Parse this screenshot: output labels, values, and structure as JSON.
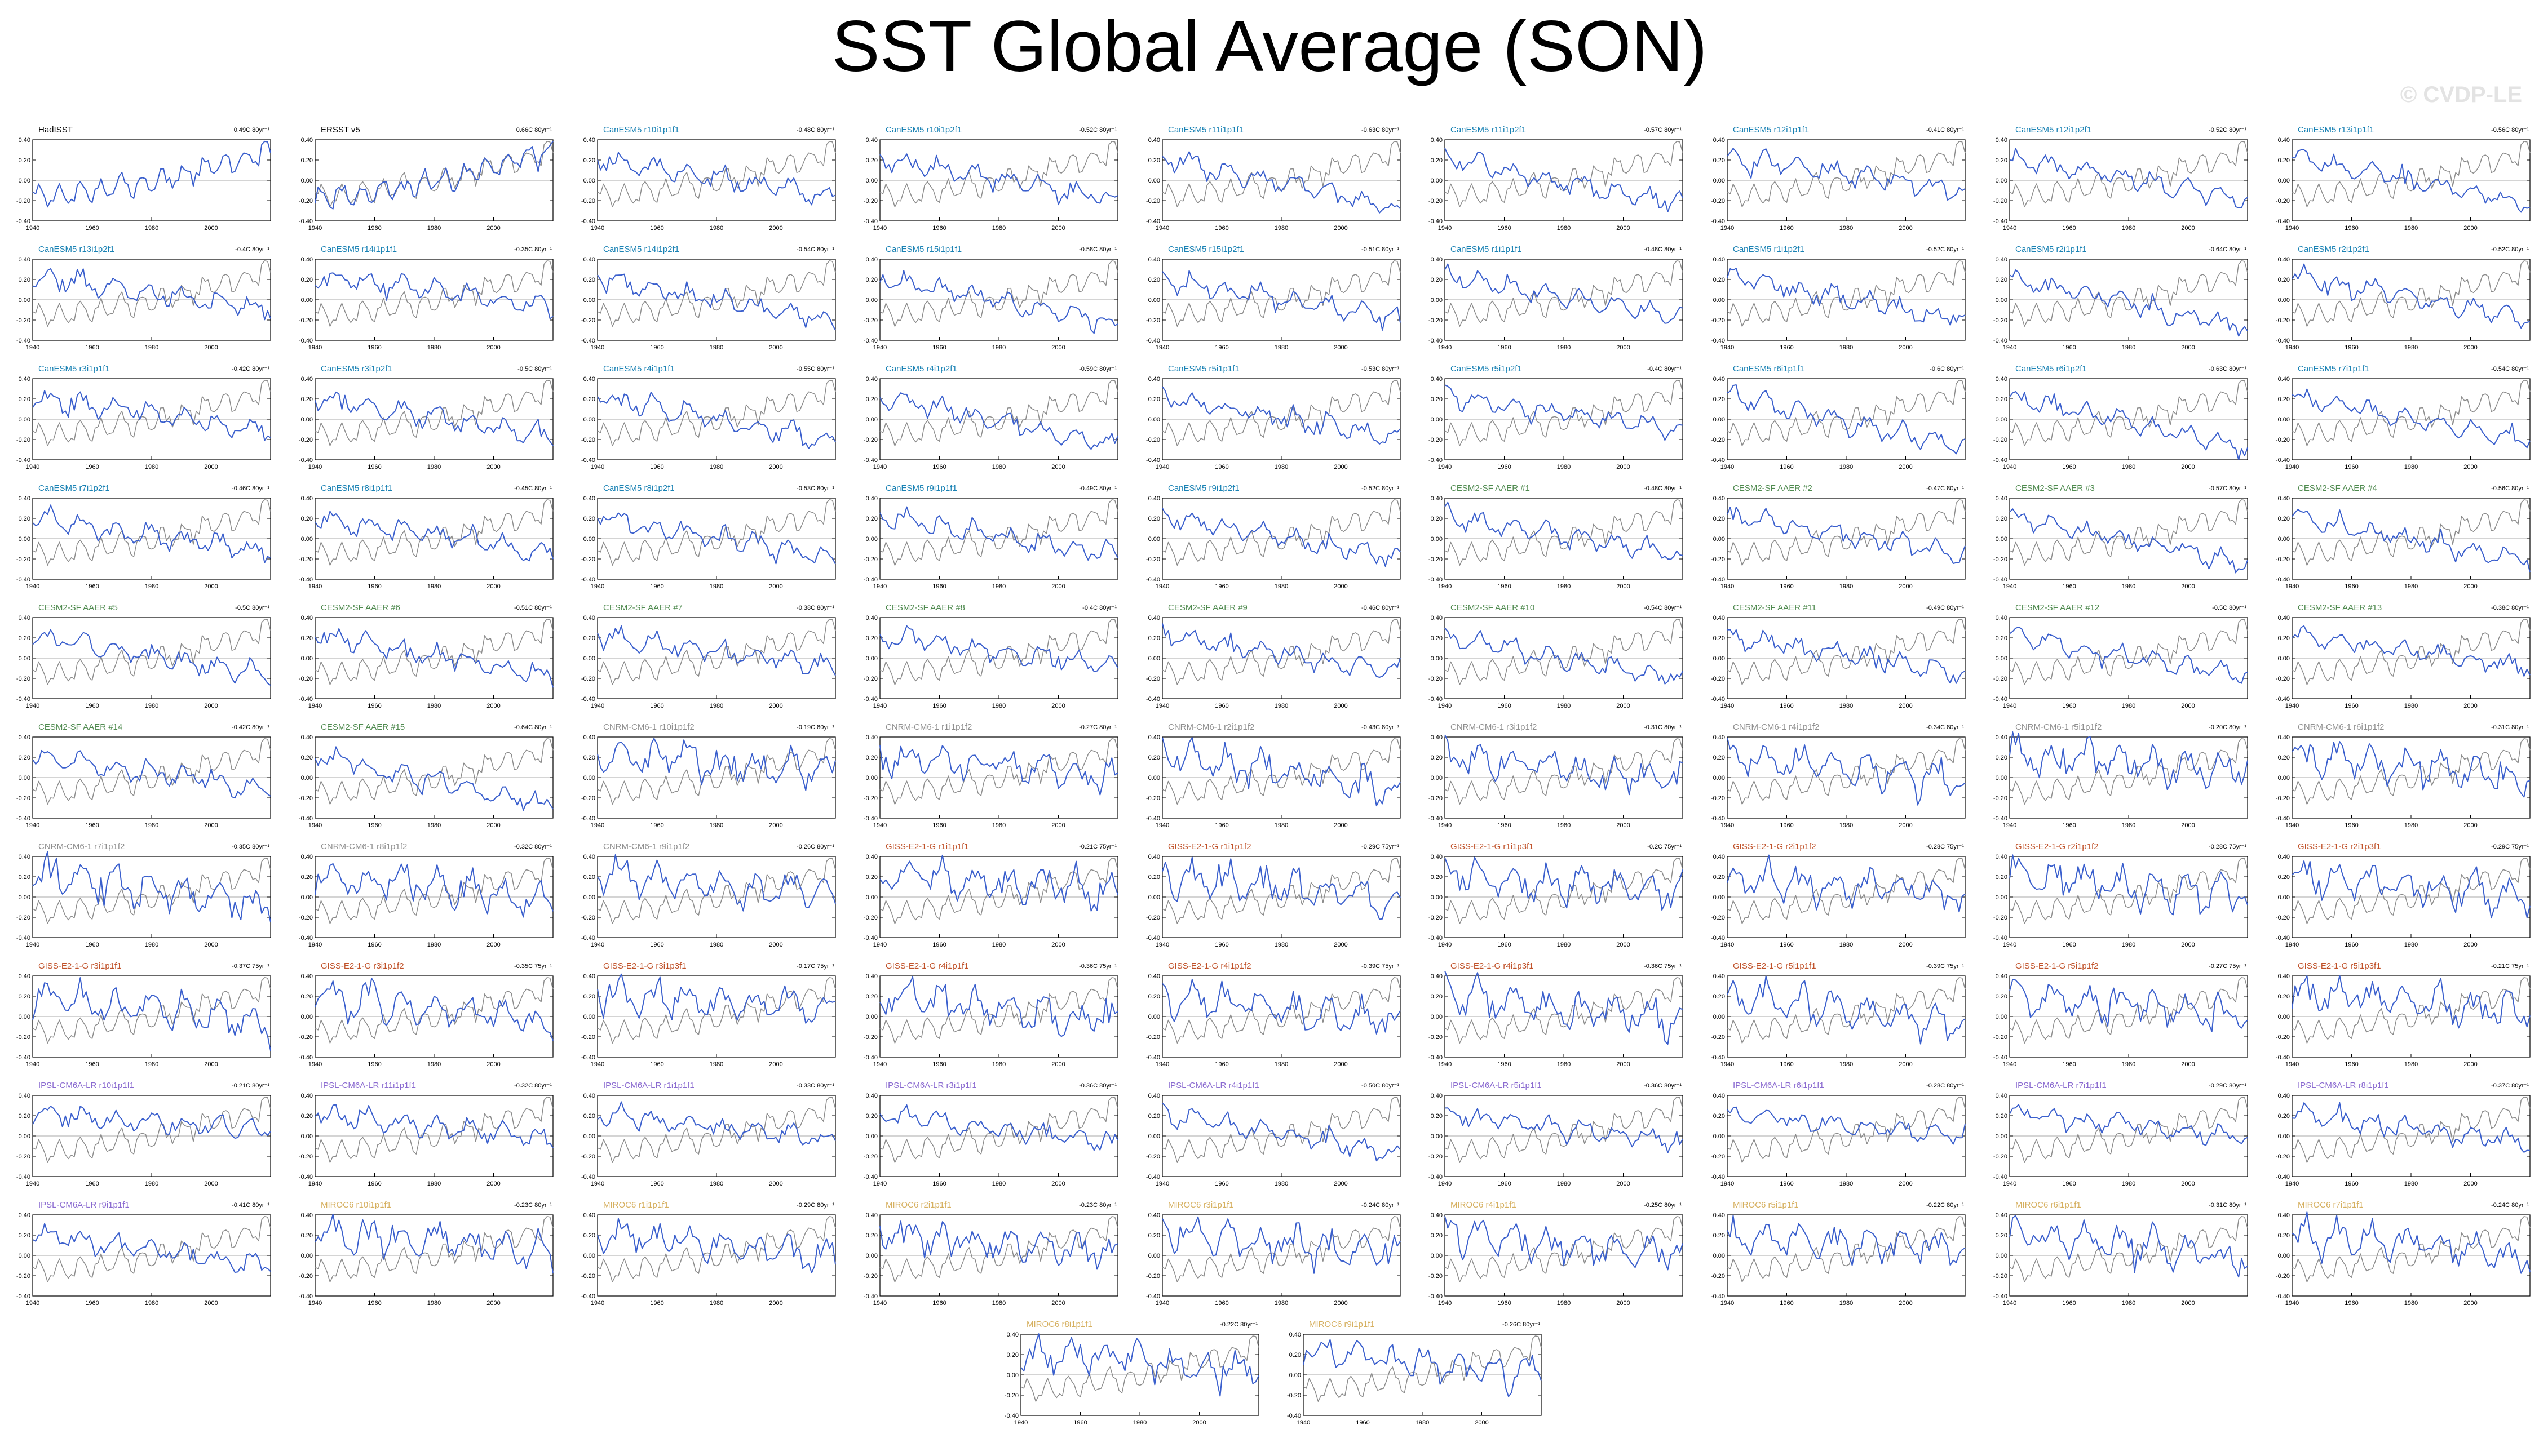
{
  "title": "SST Global Average (SON)",
  "watermark": "© CVDP-LE",
  "colors": {
    "model_line": "#3a5fcd",
    "observed_line": "#8c8c8c",
    "zero_line": "#bbbbbb",
    "axis": "#000000",
    "title_obs": "#000000",
    "title_canesm5": "#1a82b4",
    "title_cesm2": "#4f8a4f",
    "title_cnrm": "#8f8f8f",
    "title_giss": "#c0522a",
    "title_ipsl": "#8a6ad0",
    "title_miroc": "#d6b060"
  },
  "chart_data": {
    "type": "line",
    "layout": "small-multiples",
    "x_range": [
      1940,
      2020
    ],
    "y_range": [
      -0.4,
      0.4
    ],
    "x_ticks": [
      1940,
      1960,
      1980,
      2000
    ],
    "y_ticks": [
      0.4,
      0.2,
      0.0,
      -0.2,
      -0.4
    ],
    "x_tick_labels": [
      "1940",
      "1960",
      "1980",
      "2000"
    ],
    "y_tick_labels": [
      "0.40",
      "0.20",
      "0.00",
      "-0.20",
      "-0.40"
    ],
    "panels": [
      {
        "title": "HadISST",
        "trend": "0.49C 80yr⁻¹",
        "color": "title_obs"
      },
      {
        "title": "ERSST v5",
        "trend": "0.66C 80yr⁻¹",
        "color": "title_obs"
      },
      {
        "title": "CanESM5 r10i1p1f1",
        "trend": "-0.48C 80yr⁻¹",
        "color": "title_canesm5"
      },
      {
        "title": "CanESM5 r10i1p2f1",
        "trend": "-0.52C 80yr⁻¹",
        "color": "title_canesm5"
      },
      {
        "title": "CanESM5 r11i1p1f1",
        "trend": "-0.63C 80yr⁻¹",
        "color": "title_canesm5"
      },
      {
        "title": "CanESM5 r11i1p2f1",
        "trend": "-0.57C 80yr⁻¹",
        "color": "title_canesm5"
      },
      {
        "title": "CanESM5 r12i1p1f1",
        "trend": "-0.41C 80yr⁻¹",
        "color": "title_canesm5"
      },
      {
        "title": "CanESM5 r12i1p2f1",
        "trend": "-0.52C 80yr⁻¹",
        "color": "title_canesm5"
      },
      {
        "title": "CanESM5 r13i1p1f1",
        "trend": "-0.56C 80yr⁻¹",
        "color": "title_canesm5"
      },
      {
        "title": "CanESM5 r13i1p2f1",
        "trend": "-0.4C 80yr⁻¹",
        "color": "title_canesm5"
      },
      {
        "title": "CanESM5 r14i1p1f1",
        "trend": "-0.35C 80yr⁻¹",
        "color": "title_canesm5"
      },
      {
        "title": "CanESM5 r14i1p2f1",
        "trend": "-0.54C 80yr⁻¹",
        "color": "title_canesm5"
      },
      {
        "title": "CanESM5 r15i1p1f1",
        "trend": "-0.58C 80yr⁻¹",
        "color": "title_canesm5"
      },
      {
        "title": "CanESM5 r15i1p2f1",
        "trend": "-0.51C 80yr⁻¹",
        "color": "title_canesm5"
      },
      {
        "title": "CanESM5 r1i1p1f1",
        "trend": "-0.48C 80yr⁻¹",
        "color": "title_canesm5"
      },
      {
        "title": "CanESM5 r1i1p2f1",
        "trend": "-0.52C 80yr⁻¹",
        "color": "title_canesm5"
      },
      {
        "title": "CanESM5 r2i1p1f1",
        "trend": "-0.64C 80yr⁻¹",
        "color": "title_canesm5"
      },
      {
        "title": "CanESM5 r2i1p2f1",
        "trend": "-0.52C 80yr⁻¹",
        "color": "title_canesm5"
      },
      {
        "title": "CanESM5 r3i1p1f1",
        "trend": "-0.42C 80yr⁻¹",
        "color": "title_canesm5"
      },
      {
        "title": "CanESM5 r3i1p2f1",
        "trend": "-0.5C 80yr⁻¹",
        "color": "title_canesm5"
      },
      {
        "title": "CanESM5 r4i1p1f1",
        "trend": "-0.55C 80yr⁻¹",
        "color": "title_canesm5"
      },
      {
        "title": "CanESM5 r4i1p2f1",
        "trend": "-0.59C 80yr⁻¹",
        "color": "title_canesm5"
      },
      {
        "title": "CanESM5 r5i1p1f1",
        "trend": "-0.53C 80yr⁻¹",
        "color": "title_canesm5"
      },
      {
        "title": "CanESM5 r5i1p2f1",
        "trend": "-0.4C 80yr⁻¹",
        "color": "title_canesm5"
      },
      {
        "title": "CanESM5 r6i1p1f1",
        "trend": "-0.6C 80yr⁻¹",
        "color": "title_canesm5"
      },
      {
        "title": "CanESM5 r6i1p2f1",
        "trend": "-0.63C 80yr⁻¹",
        "color": "title_canesm5"
      },
      {
        "title": "CanESM5 r7i1p1f1",
        "trend": "-0.54C 80yr⁻¹",
        "color": "title_canesm5"
      },
      {
        "title": "CanESM5 r7i1p2f1",
        "trend": "-0.46C 80yr⁻¹",
        "color": "title_canesm5"
      },
      {
        "title": "CanESM5 r8i1p1f1",
        "trend": "-0.45C 80yr⁻¹",
        "color": "title_canesm5"
      },
      {
        "title": "CanESM5 r8i1p2f1",
        "trend": "-0.53C 80yr⁻¹",
        "color": "title_canesm5"
      },
      {
        "title": "CanESM5 r9i1p1f1",
        "trend": "-0.49C 80yr⁻¹",
        "color": "title_canesm5"
      },
      {
        "title": "CanESM5 r9i1p2f1",
        "trend": "-0.52C 80yr⁻¹",
        "color": "title_canesm5"
      },
      {
        "title": "CESM2-SF AAER #1",
        "trend": "-0.48C 80yr⁻¹",
        "color": "title_cesm2"
      },
      {
        "title": "CESM2-SF AAER #2",
        "trend": "-0.47C 80yr⁻¹",
        "color": "title_cesm2"
      },
      {
        "title": "CESM2-SF AAER #3",
        "trend": "-0.57C 80yr⁻¹",
        "color": "title_cesm2"
      },
      {
        "title": "CESM2-SF AAER #4",
        "trend": "-0.56C 80yr⁻¹",
        "color": "title_cesm2"
      },
      {
        "title": "CESM2-SF AAER #5",
        "trend": "-0.5C 80yr⁻¹",
        "color": "title_cesm2"
      },
      {
        "title": "CESM2-SF AAER #6",
        "trend": "-0.51C 80yr⁻¹",
        "color": "title_cesm2"
      },
      {
        "title": "CESM2-SF AAER #7",
        "trend": "-0.38C 80yr⁻¹",
        "color": "title_cesm2"
      },
      {
        "title": "CESM2-SF AAER #8",
        "trend": "-0.4C 80yr⁻¹",
        "color": "title_cesm2"
      },
      {
        "title": "CESM2-SF AAER #9",
        "trend": "-0.46C 80yr⁻¹",
        "color": "title_cesm2"
      },
      {
        "title": "CESM2-SF AAER #10",
        "trend": "-0.54C 80yr⁻¹",
        "color": "title_cesm2"
      },
      {
        "title": "CESM2-SF AAER #11",
        "trend": "-0.49C 80yr⁻¹",
        "color": "title_cesm2"
      },
      {
        "title": "CESM2-SF AAER #12",
        "trend": "-0.5C 80yr⁻¹",
        "color": "title_cesm2"
      },
      {
        "title": "CESM2-SF AAER #13",
        "trend": "-0.38C 80yr⁻¹",
        "color": "title_cesm2"
      },
      {
        "title": "CESM2-SF AAER #14",
        "trend": "-0.42C 80yr⁻¹",
        "color": "title_cesm2"
      },
      {
        "title": "CESM2-SF AAER #15",
        "trend": "-0.64C 80yr⁻¹",
        "color": "title_cesm2"
      },
      {
        "title": "CNRM-CM6-1 r10i1p1f2",
        "trend": "-0.19C 80yr⁻¹",
        "color": "title_cnrm"
      },
      {
        "title": "CNRM-CM6-1 r1i1p1f2",
        "trend": "-0.27C 80yr⁻¹",
        "color": "title_cnrm"
      },
      {
        "title": "CNRM-CM6-1 r2i1p1f2",
        "trend": "-0.43C 80yr⁻¹",
        "color": "title_cnrm"
      },
      {
        "title": "CNRM-CM6-1 r3i1p1f2",
        "trend": "-0.31C 80yr⁻¹",
        "color": "title_cnrm"
      },
      {
        "title": "CNRM-CM6-1 r4i1p1f2",
        "trend": "-0.34C 80yr⁻¹",
        "color": "title_cnrm"
      },
      {
        "title": "CNRM-CM6-1 r5i1p1f2",
        "trend": "-0.20C 80yr⁻¹",
        "color": "title_cnrm"
      },
      {
        "title": "CNRM-CM6-1 r6i1p1f2",
        "trend": "-0.31C 80yr⁻¹",
        "color": "title_cnrm"
      },
      {
        "title": "CNRM-CM6-1 r7i1p1f2",
        "trend": "-0.35C 80yr⁻¹",
        "color": "title_cnrm"
      },
      {
        "title": "CNRM-CM6-1 r8i1p1f2",
        "trend": "-0.32C 80yr⁻¹",
        "color": "title_cnrm"
      },
      {
        "title": "CNRM-CM6-1 r9i1p1f2",
        "trend": "-0.26C 80yr⁻¹",
        "color": "title_cnrm"
      },
      {
        "title": "GISS-E2-1-G r1i1p1f1",
        "trend": "-0.21C 75yr⁻¹",
        "color": "title_giss"
      },
      {
        "title": "GISS-E2-1-G r1i1p1f2",
        "trend": "-0.29C 75yr⁻¹",
        "color": "title_giss"
      },
      {
        "title": "GISS-E2-1-G r1i1p3f1",
        "trend": "-0.2C 75yr⁻¹",
        "color": "title_giss"
      },
      {
        "title": "GISS-E2-1-G r2i1p1f2",
        "trend": "-0.28C 75yr⁻¹",
        "color": "title_giss"
      },
      {
        "title": "GISS-E2-1-G r2i1p1f2",
        "trend": "-0.28C 75yr⁻¹",
        "color": "title_giss"
      },
      {
        "title": "GISS-E2-1-G r2i1p3f1",
        "trend": "-0.29C 75yr⁻¹",
        "color": "title_giss"
      },
      {
        "title": "GISS-E2-1-G r3i1p1f1",
        "trend": "-0.37C 75yr⁻¹",
        "color": "title_giss"
      },
      {
        "title": "GISS-E2-1-G r3i1p1f2",
        "trend": "-0.35C 75yr⁻¹",
        "color": "title_giss"
      },
      {
        "title": "GISS-E2-1-G r3i1p3f1",
        "trend": "-0.17C 75yr⁻¹",
        "color": "title_giss"
      },
      {
        "title": "GISS-E2-1-G r4i1p1f1",
        "trend": "-0.36C 75yr⁻¹",
        "color": "title_giss"
      },
      {
        "title": "GISS-E2-1-G r4i1p1f2",
        "trend": "-0.39C 75yr⁻¹",
        "color": "title_giss"
      },
      {
        "title": "GISS-E2-1-G r4i1p3f1",
        "trend": "-0.36C 75yr⁻¹",
        "color": "title_giss"
      },
      {
        "title": "GISS-E2-1-G r5i1p1f1",
        "trend": "-0.39C 75yr⁻¹",
        "color": "title_giss"
      },
      {
        "title": "GISS-E2-1-G r5i1p1f2",
        "trend": "-0.27C 75yr⁻¹",
        "color": "title_giss"
      },
      {
        "title": "GISS-E2-1-G r5i1p3f1",
        "trend": "-0.21C 75yr⁻¹",
        "color": "title_giss"
      },
      {
        "title": "IPSL-CM6A-LR r10i1p1f1",
        "trend": "-0.21C 80yr⁻¹",
        "color": "title_ipsl"
      },
      {
        "title": "IPSL-CM6A-LR r11i1p1f1",
        "trend": "-0.32C 80yr⁻¹",
        "color": "title_ipsl"
      },
      {
        "title": "IPSL-CM6A-LR r1i1p1f1",
        "trend": "-0.33C 80yr⁻¹",
        "color": "title_ipsl"
      },
      {
        "title": "IPSL-CM6A-LR r3i1p1f1",
        "trend": "-0.36C 80yr⁻¹",
        "color": "title_ipsl"
      },
      {
        "title": "IPSL-CM6A-LR r4i1p1f1",
        "trend": "-0.50C 80yr⁻¹",
        "color": "title_ipsl"
      },
      {
        "title": "IPSL-CM6A-LR r5i1p1f1",
        "trend": "-0.36C 80yr⁻¹",
        "color": "title_ipsl"
      },
      {
        "title": "IPSL-CM6A-LR r6i1p1f1",
        "trend": "-0.28C 80yr⁻¹",
        "color": "title_ipsl"
      },
      {
        "title": "IPSL-CM6A-LR r7i1p1f1",
        "trend": "-0.29C 80yr⁻¹",
        "color": "title_ipsl"
      },
      {
        "title": "IPSL-CM6A-LR r8i1p1f1",
        "trend": "-0.37C 80yr⁻¹",
        "color": "title_ipsl"
      },
      {
        "title": "IPSL-CM6A-LR r9i1p1f1",
        "trend": "-0.41C 80yr⁻¹",
        "color": "title_ipsl"
      },
      {
        "title": "MIROC6 r10i1p1f1",
        "trend": "-0.23C 80yr⁻¹",
        "color": "title_miroc"
      },
      {
        "title": "MIROC6 r1i1p1f1",
        "trend": "-0.29C 80yr⁻¹",
        "color": "title_miroc"
      },
      {
        "title": "MIROC6 r2i1p1f1",
        "trend": "-0.23C 80yr⁻¹",
        "color": "title_miroc"
      },
      {
        "title": "MIROC6 r3i1p1f1",
        "trend": "-0.24C 80yr⁻¹",
        "color": "title_miroc"
      },
      {
        "title": "MIROC6 r4i1p1f1",
        "trend": "-0.25C 80yr⁻¹",
        "color": "title_miroc"
      },
      {
        "title": "MIROC6 r5i1p1f1",
        "trend": "-0.22C 80yr⁻¹",
        "color": "title_miroc"
      },
      {
        "title": "MIROC6 r6i1p1f1",
        "trend": "-0.31C 80yr⁻¹",
        "color": "title_miroc"
      },
      {
        "title": "MIROC6 r7i1p1f1",
        "trend": "-0.24C 80yr⁻¹",
        "color": "title_miroc"
      },
      {
        "title": "MIROC6 r8i1p1f1",
        "trend": "-0.22C 80yr⁻¹",
        "color": "title_miroc"
      },
      {
        "title": "MIROC6 r9i1p1f1",
        "trend": "-0.26C 80yr⁻¹",
        "color": "title_miroc"
      }
    ]
  }
}
